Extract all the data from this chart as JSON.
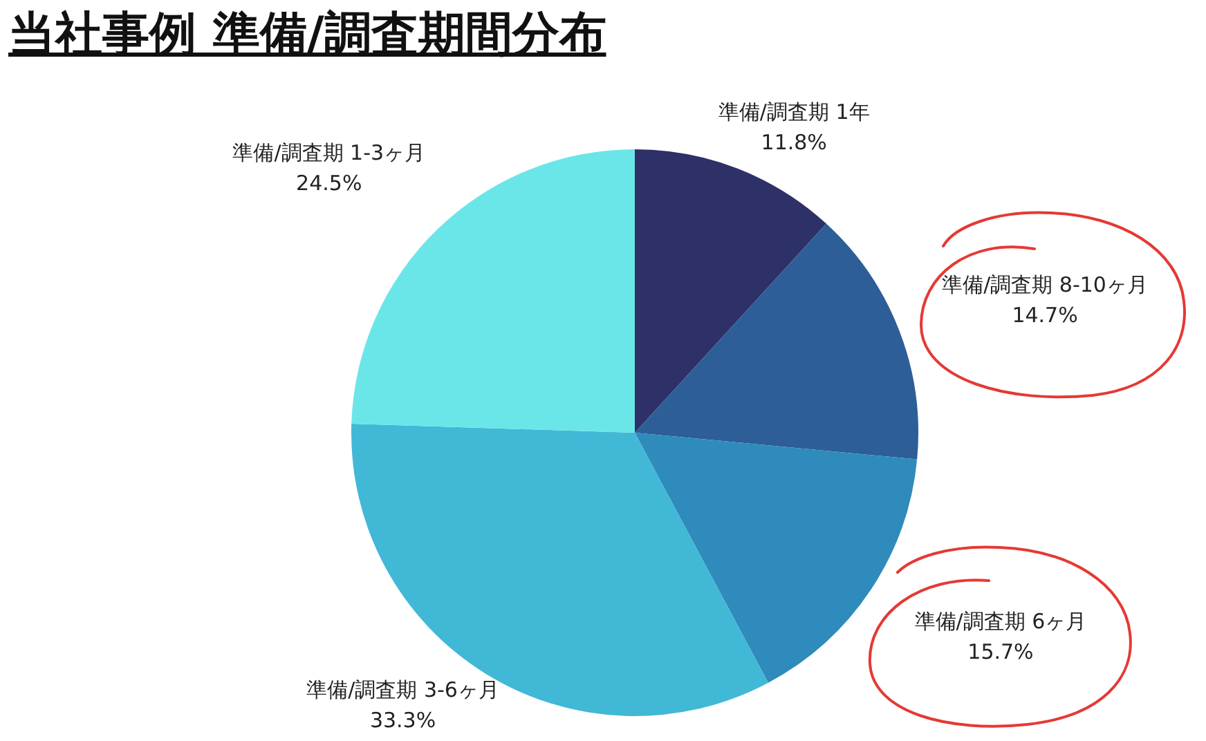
{
  "chart_data": {
    "type": "pie",
    "title": "当社事例 準備/調査期間分布",
    "categories": [
      "準備/調査期 1年",
      "準備/調査期 8-10ヶ月",
      "準備/調査期 6ヶ月",
      "準備/調査期 3-6ヶ月",
      "準備/調査期 1-3ヶ月"
    ],
    "values": [
      11.8,
      14.7,
      15.7,
      33.3,
      24.5
    ],
    "value_labels": [
      "11.8%",
      "14.7%",
      "15.7%",
      "33.3%",
      "24.5%"
    ],
    "colors": [
      "#2e3068",
      "#2d5e98",
      "#2e8bbb",
      "#41b8d6",
      "#6ae6e8"
    ],
    "legend": false
  }
}
